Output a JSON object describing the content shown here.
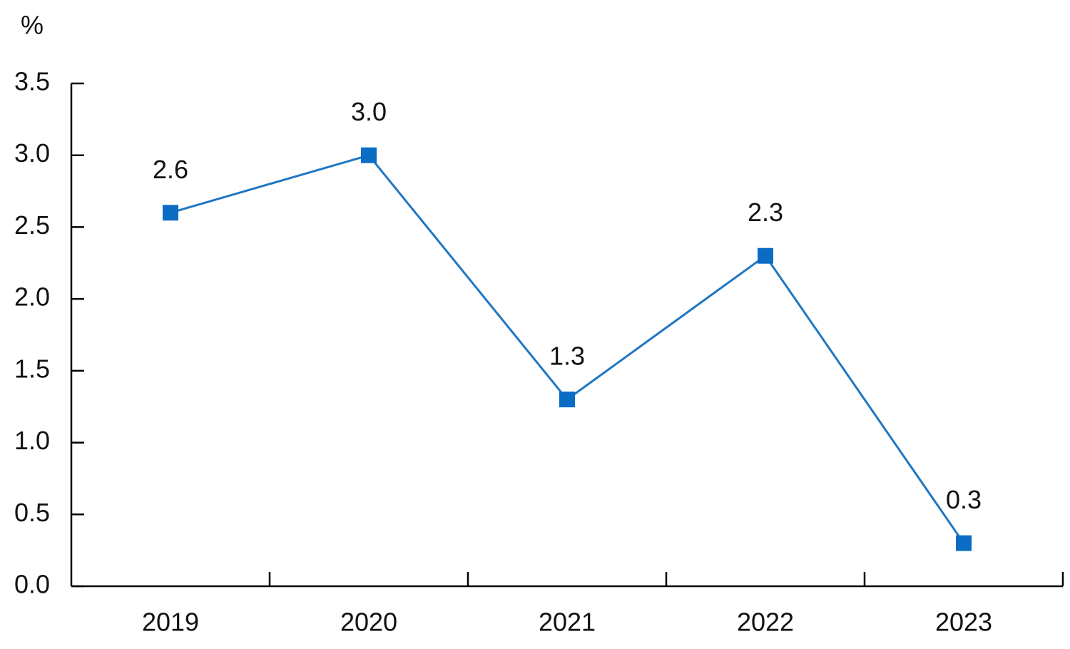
{
  "chart_data": {
    "type": "line",
    "y_unit": "%",
    "categories": [
      "2019",
      "2020",
      "2021",
      "2022",
      "2023"
    ],
    "values": [
      2.6,
      3,
      1.3,
      2.3,
      0.3
    ],
    "value_labels": [
      "2.6",
      "3.0",
      "1.3",
      "2.3",
      "0.3"
    ],
    "color": "#1f77c4",
    "marker_color": "#0b6cc4",
    "ylim": [
      0,
      3.5
    ],
    "yticks": [
      {
        "value": 0,
        "label": "0.0"
      },
      0.5,
      {
        "value": 1,
        "label": "1.0"
      },
      1.5,
      {
        "value": 2,
        "label": "2.0"
      },
      2.5,
      {
        "value": 3,
        "label": "3.0"
      },
      3.5
    ],
    "grid": false
  }
}
